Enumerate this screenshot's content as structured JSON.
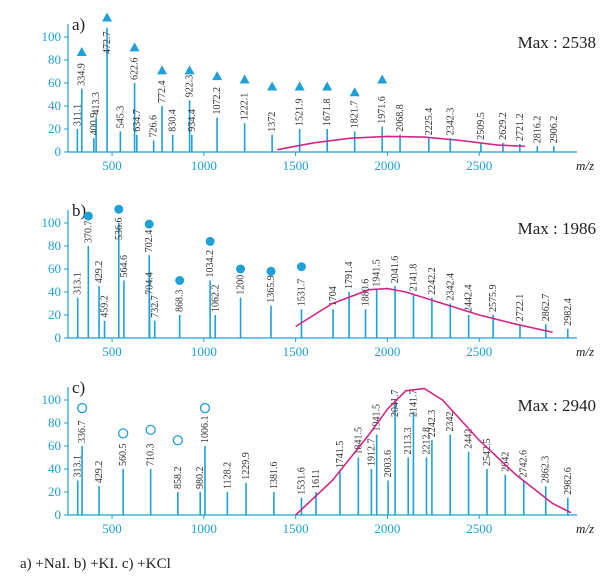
{
  "chart_data": [
    {
      "type": "stem",
      "label": "a)",
      "max_label": "Max : 2538",
      "x_label": "m/z",
      "xlim": [
        260,
        3000
      ],
      "ylim": [
        0,
        120
      ],
      "xticks": [
        500,
        1000,
        1500,
        2000,
        2500
      ],
      "yticks": [
        0,
        20,
        40,
        60,
        80,
        100
      ],
      "color": "#1ea0d8",
      "peaks": {
        "x": [
          311.1,
          334.9,
          400.9,
          413.3,
          472.7,
          545.3,
          622.6,
          634.7,
          726.6,
          772.4,
          830.4,
          922.3,
          934.4,
          1072.2,
          1222.1,
          1372.0,
          1521.9,
          1671.8,
          1821.7,
          1971.6,
          2068.8,
          2225.4,
          2342.3,
          2509.5,
          2629.2,
          2721.2,
          2816.2,
          2906.2
        ],
        "values": [
          20,
          55,
          12,
          30,
          108,
          18,
          60,
          15,
          10,
          40,
          15,
          45,
          15,
          30,
          25,
          15,
          20,
          20,
          18,
          22,
          15,
          12,
          12,
          8,
          8,
          7,
          5,
          5
        ]
      },
      "markers": {
        "shape": "triangle",
        "x": [
          334.9,
          472.7,
          622.6,
          772.4,
          922.3,
          1072.2,
          1222.1,
          1372.0,
          1521.9,
          1671.8,
          1821.7,
          1971.6
        ],
        "values": [
          87,
          117,
          91,
          71,
          71,
          66,
          63,
          57,
          57,
          57,
          52,
          63
        ]
      },
      "envelope": {
        "color": "#d0268a",
        "x": [
          1400,
          1600,
          1800,
          2000,
          2200,
          2400,
          2600,
          2750
        ],
        "values": [
          2,
          8,
          12,
          13.5,
          13,
          10,
          6,
          5
        ]
      }
    },
    {
      "type": "stem",
      "label": "b)",
      "max_label": "Max : 1986",
      "x_label": "m/z",
      "xlim": [
        260,
        3000
      ],
      "ylim": [
        0,
        120
      ],
      "xticks": [
        500,
        1000,
        1500,
        2000,
        2500
      ],
      "yticks": [
        0,
        20,
        40,
        60,
        80,
        100
      ],
      "color": "#1ea0d8",
      "peaks": {
        "x": [
          313.1,
          370.7,
          429.2,
          459.2,
          536.6,
          564.6,
          702.4,
          704.4,
          732.7,
          868.3,
          1034.2,
          1062.2,
          1200.0,
          1365.9,
          1531.7,
          1704.0,
          1791.4,
          1880.6,
          1941.5,
          2041.6,
          2141.8,
          2242.2,
          2342.4,
          2442.4,
          2575.9,
          2722.1,
          2862.7,
          2982.4
        ],
        "values": [
          35,
          80,
          45,
          15,
          100,
          50,
          72,
          35,
          15,
          20,
          50,
          20,
          35,
          28,
          25,
          25,
          40,
          25,
          42,
          45,
          38,
          35,
          30,
          20,
          20,
          12,
          12,
          8
        ]
      },
      "markers": {
        "shape": "circle",
        "x": [
          370.7,
          536.6,
          702.4,
          868.3,
          1034.2,
          1200.0,
          1365.9,
          1531.7
        ],
        "values": [
          106,
          112,
          99,
          50,
          84,
          60,
          58,
          62
        ]
      },
      "envelope": {
        "color": "#d0268a",
        "x": [
          1500,
          1700,
          1900,
          2000,
          2100,
          2300,
          2500,
          2700,
          2900
        ],
        "values": [
          10,
          30,
          42,
          43,
          40,
          30,
          20,
          12,
          5
        ]
      }
    },
    {
      "type": "stem",
      "label": "c)",
      "max_label": "Max : 2940",
      "x_label": "m/z",
      "xlim": [
        260,
        3000
      ],
      "ylim": [
        0,
        120
      ],
      "xticks": [
        500,
        1000,
        1500,
        2000,
        2500
      ],
      "yticks": [
        0,
        20,
        40,
        60,
        80,
        100
      ],
      "color": "#1ea0d8",
      "peaks": {
        "x": [
          313.1,
          336.7,
          429.2,
          560.5,
          710.3,
          858.2,
          980.2,
          1006.1,
          1128.2,
          1229.9,
          1381.6,
          1531.6,
          1611.0,
          1741.5,
          1841.5,
          1912.7,
          1941.5,
          2003.6,
          2041.7,
          2113.3,
          2141.7,
          2212.8,
          2242.3,
          2342.0,
          2442.0,
          2542.5,
          2642.0,
          2742.6,
          2862.3,
          2982.6
        ],
        "values": [
          30,
          60,
          25,
          40,
          40,
          20,
          20,
          60,
          20,
          28,
          20,
          15,
          20,
          38,
          50,
          40,
          70,
          30,
          100,
          50,
          90,
          50,
          65,
          70,
          55,
          40,
          35,
          30,
          25,
          15
        ]
      },
      "markers": {
        "shape": "open-circle",
        "x": [
          336.7,
          560.5,
          710.3,
          858.2,
          1006.1
        ],
        "values": [
          93,
          71,
          74,
          65,
          93
        ]
      },
      "envelope": {
        "color": "#d0268a",
        "x": [
          1500,
          1700,
          1900,
          2000,
          2100,
          2200,
          2300,
          2500,
          2700,
          2900,
          3000
        ],
        "values": [
          0,
          30,
          70,
          92,
          108,
          110,
          100,
          65,
          35,
          10,
          2
        ]
      }
    }
  ],
  "caption": "a) +NaI.  b) +KI.  c) +KCl"
}
